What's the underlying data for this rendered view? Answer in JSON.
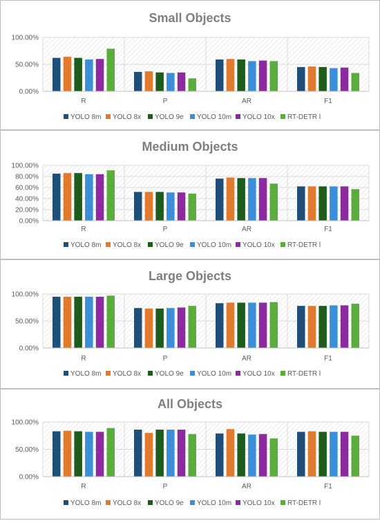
{
  "colors": {
    "YOLO 8m": "#1f4e79",
    "YOLO 8x": "#e07a2f",
    "YOLO 9e": "#1e5c1e",
    "YOLO 10m": "#3b8fd9",
    "YOLO 10x": "#8e2aa0",
    "RT-DETR l": "#5aad3c"
  },
  "chart_data": [
    {
      "type": "bar",
      "title": "Small Objects",
      "categories": [
        "R",
        "P",
        "AR",
        "F1"
      ],
      "yticks": [
        "0.00%",
        "50.00%",
        "100.00%"
      ],
      "ylim": [
        0,
        100
      ],
      "legend_position": "bottom",
      "series": [
        {
          "name": "YOLO 8m",
          "values": [
            62,
            36,
            59,
            45
          ]
        },
        {
          "name": "YOLO 8x",
          "values": [
            64,
            37,
            60,
            46
          ]
        },
        {
          "name": "YOLO 9e",
          "values": [
            62,
            35,
            59,
            45
          ]
        },
        {
          "name": "YOLO 10m",
          "values": [
            59,
            34,
            56,
            43
          ]
        },
        {
          "name": "YOLO 10x",
          "values": [
            60,
            35,
            57,
            44
          ]
        },
        {
          "name": "RT-DETR l",
          "values": [
            79,
            24,
            56,
            34
          ]
        }
      ]
    },
    {
      "type": "bar",
      "title": "Medium Objects",
      "categories": [
        "R",
        "P",
        "AR",
        "F1"
      ],
      "yticks": [
        "0.00%",
        "20.00%",
        "40.00%",
        "60.00%",
        "80.00%",
        "100.00%"
      ],
      "ylim": [
        0,
        100
      ],
      "legend_position": "bottom",
      "series": [
        {
          "name": "YOLO 8m",
          "values": [
            85,
            52,
            76,
            62
          ]
        },
        {
          "name": "YOLO 8x",
          "values": [
            86,
            52,
            78,
            62
          ]
        },
        {
          "name": "YOLO 9e",
          "values": [
            86,
            52,
            77,
            62
          ]
        },
        {
          "name": "YOLO 10m",
          "values": [
            84,
            51,
            77,
            62
          ]
        },
        {
          "name": "YOLO 10x",
          "values": [
            84,
            51,
            77,
            62
          ]
        },
        {
          "name": "RT-DETR l",
          "values": [
            91,
            49,
            67,
            57
          ]
        }
      ]
    },
    {
      "type": "bar",
      "title": "Large Objects",
      "categories": [
        "R",
        "P",
        "AR",
        "F1"
      ],
      "yticks": [
        "0.00%",
        "50.00%",
        "100.00%"
      ],
      "ylim": [
        0,
        100
      ],
      "legend_position": "bottom",
      "series": [
        {
          "name": "YOLO 8m",
          "values": [
            95,
            74,
            83,
            78
          ]
        },
        {
          "name": "YOLO 8x",
          "values": [
            95,
            73,
            84,
            78
          ]
        },
        {
          "name": "YOLO 9e",
          "values": [
            95,
            73,
            84,
            78
          ]
        },
        {
          "name": "YOLO 10m",
          "values": [
            95,
            74,
            84,
            79
          ]
        },
        {
          "name": "YOLO 10x",
          "values": [
            95,
            75,
            84,
            79
          ]
        },
        {
          "name": "RT-DETR l",
          "values": [
            97,
            78,
            85,
            82
          ]
        }
      ]
    },
    {
      "type": "bar",
      "title": "All Objects",
      "categories": [
        "R",
        "P",
        "AR",
        "F1"
      ],
      "yticks": [
        "0.00%",
        "50.00%",
        "100.00%"
      ],
      "ylim": [
        0,
        100
      ],
      "legend_position": "bottom",
      "series": [
        {
          "name": "YOLO 8m",
          "values": [
            83,
            86,
            79,
            82
          ]
        },
        {
          "name": "YOLO 8x",
          "values": [
            84,
            80,
            87,
            83
          ]
        },
        {
          "name": "YOLO 9e",
          "values": [
            83,
            86,
            79,
            82
          ]
        },
        {
          "name": "YOLO 10m",
          "values": [
            82,
            86,
            77,
            82
          ]
        },
        {
          "name": "YOLO 10x",
          "values": [
            82,
            86,
            78,
            82
          ]
        },
        {
          "name": "RT-DETR l",
          "values": [
            89,
            78,
            70,
            75
          ]
        }
      ]
    }
  ]
}
